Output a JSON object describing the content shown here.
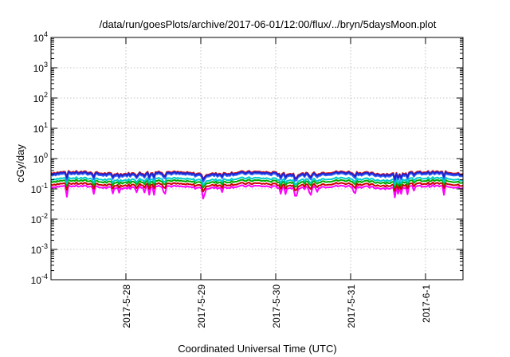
{
  "chart_data": {
    "type": "line",
    "title": "/data/run/goesPlots/archive/2017-06-01/12:00/flux/../bryn/5daysMoon.plot",
    "xlabel": "Coordinated Universal Time (UTC)",
    "ylabel": "cGy/day",
    "yscale": "log",
    "ylim": [
      0.0001,
      10000
    ],
    "y_ticks": [
      {
        "base": "10",
        "exp": "-4"
      },
      {
        "base": "10",
        "exp": "-3"
      },
      {
        "base": "10",
        "exp": "-2"
      },
      {
        "base": "10",
        "exp": "-1"
      },
      {
        "base": "10",
        "exp": "0"
      },
      {
        "base": "10",
        "exp": "1"
      },
      {
        "base": "10",
        "exp": "2"
      },
      {
        "base": "10",
        "exp": "3"
      },
      {
        "base": "10",
        "exp": "4"
      }
    ],
    "xlim": [
      "2017-05-27",
      "2017-06-01T12:00"
    ],
    "x_ticks": [
      "2017-5-28",
      "2017-5-29",
      "2017-5-30",
      "2017-5-31",
      "2017-6-1"
    ],
    "grid": true,
    "series": [
      {
        "color": "#ff00ff",
        "base": 0.115,
        "dip_depth": 0.55
      },
      {
        "color": "#cc0000",
        "base": 0.14,
        "dip_depth": 0.35
      },
      {
        "color": "#00aa00",
        "base": 0.175,
        "dip_depth": 0.3
      },
      {
        "color": "#00cccc",
        "base": 0.21,
        "dip_depth": 0.3
      },
      {
        "color": "#3366ff",
        "base": 0.29,
        "dip_depth": 0.35
      },
      {
        "color": "#dd2222",
        "base": 0.34,
        "dip_depth": 0.3
      },
      {
        "color": "#2222cc",
        "base": 0.32,
        "dip_depth": 0.3
      }
    ]
  }
}
